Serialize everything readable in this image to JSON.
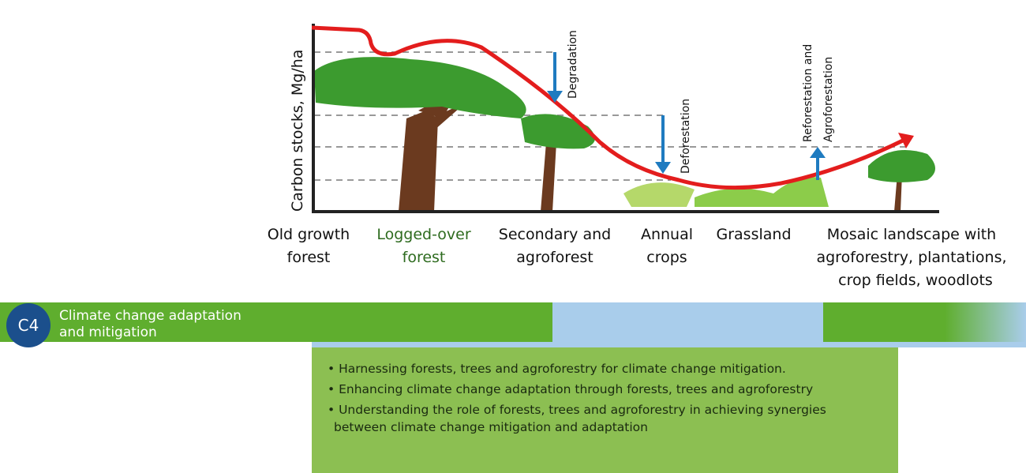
{
  "diagram": {
    "y_axis_label": "Carbon stocks, Mg/ha",
    "stages": [
      {
        "lines": [
          "Old growth",
          "forest"
        ]
      },
      {
        "lines": [
          "Logged-over",
          "forest"
        ]
      },
      {
        "lines": [
          "Secondary and",
          "agroforest"
        ]
      },
      {
        "lines": [
          "Annual",
          "crops"
        ]
      },
      {
        "lines": [
          "Grassland"
        ]
      },
      {
        "lines": [
          "Mosaic landscape with",
          "agroforestry, plantations,",
          "crop fields, woodlots"
        ]
      }
    ],
    "arrows": [
      {
        "lines": [
          "Degradation"
        ]
      },
      {
        "lines": [
          "Deforestation"
        ]
      },
      {
        "lines": [
          "Reforestation and",
          "Agroforestation"
        ]
      }
    ]
  },
  "banner": {
    "code": "C4",
    "title_lines": [
      "Climate change adaptation",
      "and mitigation"
    ]
  },
  "bullets": [
    "Harnessing forests, trees and agroforestry for climate change mitigation.",
    "Enhancing climate change adaptation through forests, trees and agroforestry",
    "Understanding the role of forests, trees and agroforestry in achieving synergies between climate change mitigation and adaptation"
  ]
}
